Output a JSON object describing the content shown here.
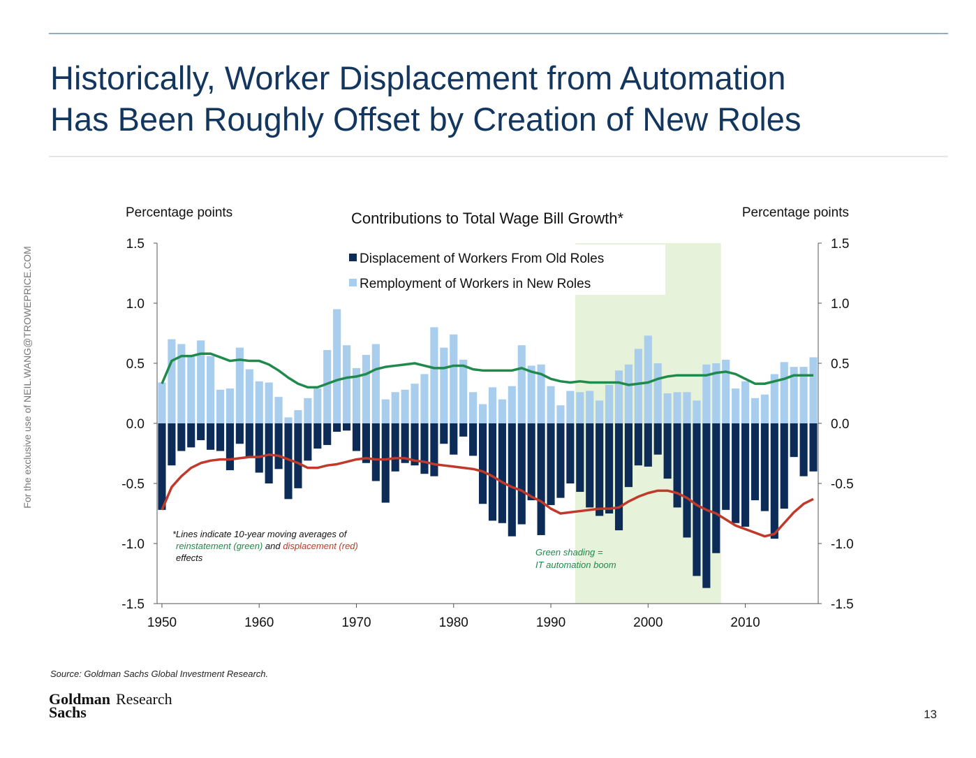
{
  "slide": {
    "title_line1": "Historically, Worker Displacement from Automation",
    "title_line2": "Has Been Roughly Offset by Creation of New Roles",
    "watermark": "For the exclusive use of NEIL.WANG@TROWEPRICE.COM",
    "source": "Source: Goldman Sachs Global Investment Research.",
    "logo_top": "Goldman",
    "logo_bottom": "Sachs",
    "logo_word": "Research",
    "page_number": "13"
  },
  "chart_data": {
    "type": "bar",
    "title": "Contributions to Total Wage Bill Growth*",
    "y_label": "Percentage points",
    "y2_label": "Percentage points",
    "x": [
      1950,
      1951,
      1952,
      1953,
      1954,
      1955,
      1956,
      1957,
      1958,
      1959,
      1960,
      1961,
      1962,
      1963,
      1964,
      1965,
      1966,
      1967,
      1968,
      1969,
      1970,
      1971,
      1972,
      1973,
      1974,
      1975,
      1976,
      1977,
      1978,
      1979,
      1980,
      1981,
      1982,
      1983,
      1984,
      1985,
      1986,
      1987,
      1988,
      1989,
      1990,
      1991,
      1992,
      1993,
      1994,
      1995,
      1996,
      1997,
      1998,
      1999,
      2000,
      2001,
      2002,
      2003,
      2004,
      2005,
      2006,
      2007,
      2008,
      2009,
      2010,
      2011,
      2012,
      2013,
      2014,
      2015,
      2016,
      2017
    ],
    "xlim": [
      1949.5,
      2017.5
    ],
    "xticks": [
      1950,
      1960,
      1970,
      1980,
      1990,
      2000,
      2010
    ],
    "ylim": [
      -1.5,
      1.5
    ],
    "yticks": [
      {
        "value": -1.5,
        "label": "-1.5"
      },
      {
        "value": -1,
        "label": "-1.0"
      },
      -0.5,
      {
        "value": 0,
        "label": "0.0"
      },
      0.5,
      {
        "value": 1,
        "label": "1.0"
      },
      1.5
    ],
    "y2lim": [
      -1.5,
      1.5
    ],
    "y2ticks": [
      {
        "value": -1.5,
        "label": "-1.5"
      },
      {
        "value": -1,
        "label": "-1.0"
      },
      -0.5,
      {
        "value": 0,
        "label": "0.0"
      },
      0.5,
      {
        "value": 1,
        "label": "1.0"
      },
      1.5
    ],
    "series": [
      {
        "name": "Displacement of Workers From Old Roles",
        "color": "#0c2c57",
        "values": [
          -0.72,
          -0.35,
          -0.23,
          -0.2,
          -0.14,
          -0.22,
          -0.23,
          -0.39,
          -0.17,
          -0.28,
          -0.41,
          -0.5,
          -0.38,
          -0.63,
          -0.54,
          -0.31,
          -0.21,
          -0.18,
          -0.07,
          -0.06,
          -0.23,
          -0.33,
          -0.48,
          -0.66,
          -0.4,
          -0.33,
          -0.35,
          -0.42,
          -0.44,
          -0.17,
          -0.26,
          -0.11,
          -0.27,
          -0.67,
          -0.81,
          -0.83,
          -0.94,
          -0.84,
          -0.64,
          -0.93,
          -0.68,
          -0.62,
          -0.5,
          -0.57,
          -0.7,
          -0.77,
          -0.75,
          -0.89,
          -0.53,
          -0.35,
          -0.36,
          -0.26,
          -0.46,
          -0.7,
          -0.95,
          -1.27,
          -1.37,
          -1.08,
          -0.72,
          -0.83,
          -0.86,
          -0.64,
          -0.73,
          -0.96,
          -0.71,
          -0.28,
          -0.44,
          -0.4
        ]
      },
      {
        "name": "Remployment of Workers in New Roles",
        "color": "#a9cdec",
        "values": [
          0.34,
          0.7,
          0.66,
          0.57,
          0.69,
          0.56,
          0.28,
          0.29,
          0.63,
          0.45,
          0.35,
          0.34,
          0.22,
          0.05,
          0.11,
          0.21,
          0.29,
          0.61,
          0.95,
          0.65,
          0.46,
          0.57,
          0.66,
          0.2,
          0.26,
          0.28,
          0.33,
          0.41,
          0.8,
          0.63,
          0.74,
          0.53,
          0.26,
          0.16,
          0.3,
          0.2,
          0.31,
          0.65,
          0.48,
          0.49,
          0.31,
          0.15,
          0.27,
          0.26,
          0.27,
          0.19,
          0.32,
          0.44,
          0.49,
          0.62,
          0.73,
          0.5,
          0.25,
          0.26,
          0.26,
          0.19,
          0.49,
          0.5,
          0.53,
          0.29,
          0.35,
          0.21,
          0.24,
          0.41,
          0.51,
          0.47,
          0.47,
          0.55
        ]
      }
    ],
    "lines": [
      {
        "color": "#1f8a4c",
        "values": [
          0.33,
          0.52,
          0.56,
          0.56,
          0.58,
          0.58,
          0.55,
          0.52,
          0.53,
          0.52,
          0.52,
          0.49,
          0.44,
          0.38,
          0.33,
          0.3,
          0.3,
          0.33,
          0.36,
          0.38,
          0.39,
          0.41,
          0.45,
          0.47,
          0.48,
          0.49,
          0.5,
          0.48,
          0.46,
          0.46,
          0.48,
          0.48,
          0.45,
          0.44,
          0.44,
          0.44,
          0.44,
          0.46,
          0.43,
          0.41,
          0.37,
          0.35,
          0.34,
          0.35,
          0.34,
          0.34,
          0.34,
          0.34,
          0.32,
          0.33,
          0.34,
          0.37,
          0.39,
          0.4,
          0.4,
          0.4,
          0.4,
          0.42,
          0.43,
          0.41,
          0.37,
          0.33,
          0.33,
          0.35,
          0.37,
          0.4,
          0.4,
          0.4
        ]
      },
      {
        "color": "#c0392b",
        "values": [
          -0.72,
          -0.53,
          -0.44,
          -0.37,
          -0.33,
          -0.31,
          -0.3,
          -0.3,
          -0.29,
          -0.28,
          -0.28,
          -0.26,
          -0.27,
          -0.3,
          -0.33,
          -0.37,
          -0.37,
          -0.35,
          -0.34,
          -0.32,
          -0.3,
          -0.29,
          -0.3,
          -0.3,
          -0.29,
          -0.29,
          -0.31,
          -0.32,
          -0.34,
          -0.35,
          -0.36,
          -0.37,
          -0.38,
          -0.4,
          -0.44,
          -0.49,
          -0.53,
          -0.56,
          -0.61,
          -0.65,
          -0.71,
          -0.75,
          -0.74,
          -0.73,
          -0.72,
          -0.71,
          -0.71,
          -0.7,
          -0.65,
          -0.61,
          -0.58,
          -0.56,
          -0.56,
          -0.58,
          -0.62,
          -0.68,
          -0.72,
          -0.75,
          -0.8,
          -0.85,
          -0.88,
          -0.91,
          -0.94,
          -0.92,
          -0.83,
          -0.74,
          -0.67,
          -0.63
        ]
      }
    ],
    "shade": {
      "from": 1993,
      "to": 2007,
      "color": "#e6f2d9"
    },
    "note": {
      "line1": "*Lines indicate 10-year moving averages of",
      "green": "reinstatement (green)",
      "and": " and ",
      "red": "displacement (red)",
      "line3": "effects"
    },
    "shade_note": {
      "line1": "Green shading =",
      "line2": "IT automation boom"
    }
  }
}
